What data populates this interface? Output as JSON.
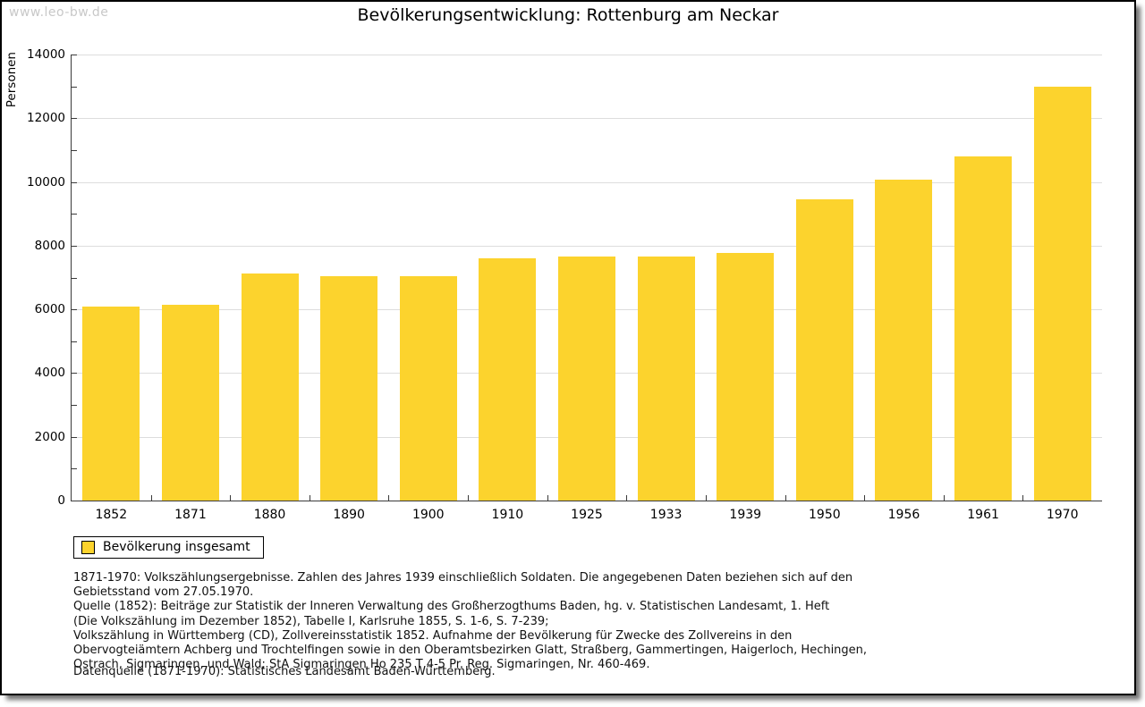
{
  "watermark": "www.leo-bw.de",
  "title": "Bevölkerungsentwicklung: Rottenburg am Neckar",
  "ylabel": "Personen",
  "legend": {
    "label": "Bevölkerung insgesamt"
  },
  "colors": {
    "bar": "#FCD32D",
    "grid": "#DDDDDD",
    "axis": "#3A3A3A",
    "watermark": "#C8C8C8"
  },
  "chart_data": {
    "type": "bar",
    "title": "Bevölkerungsentwicklung: Rottenburg am Neckar",
    "xlabel": "",
    "ylabel": "Personen",
    "categories": [
      "1852",
      "1871",
      "1880",
      "1890",
      "1900",
      "1910",
      "1925",
      "1933",
      "1939",
      "1950",
      "1956",
      "1961",
      "1970"
    ],
    "values": [
      6100,
      6150,
      7140,
      7030,
      7030,
      7610,
      7660,
      7660,
      7760,
      9450,
      10070,
      10800,
      12980
    ],
    "ylim": [
      0,
      14000
    ],
    "ytick_label_step": 2000,
    "ytick_minor_step": 1000,
    "grid": true,
    "legend": [
      "Bevölkerung insgesamt"
    ],
    "legend_position": "bottom-left",
    "bar_color": "#FCD32D"
  },
  "footnotes": [
    "1871-1970: Volkszählungsergebnisse. Zahlen des Jahres 1939 einschließlich Soldaten. Die angegebenen Daten beziehen sich auf den",
    "Gebietsstand vom 27.05.1970.",
    "Quelle (1852): Beiträge zur Statistik der Inneren Verwaltung des Großherzogthums Baden, hg. v. Statistischen Landesamt, 1. Heft",
    "(Die Volkszählung im Dezember 1852), Tabelle I, Karlsruhe 1855, S. 1-6, S. 7-239;",
    "Volkszählung in Württemberg (CD), Zollvereinsstatistik 1852. Aufnahme der Bevölkerung für Zwecke des Zollvereins in den",
    "Obervogteiämtern Achberg und Trochtelfingen sowie in den Oberamtsbezirken Glatt, Straßberg, Gammertingen, Haigerloch, Hechingen,",
    "Ostrach, Sigmaringen, und Wald; StA Sigmaringen Ho 235 T 4-5 Pr. Reg. Sigmaringen, Nr. 460-469."
  ],
  "datasource": "Datenquelle (1871-1970): Statistisches Landesamt Baden-Württemberg."
}
